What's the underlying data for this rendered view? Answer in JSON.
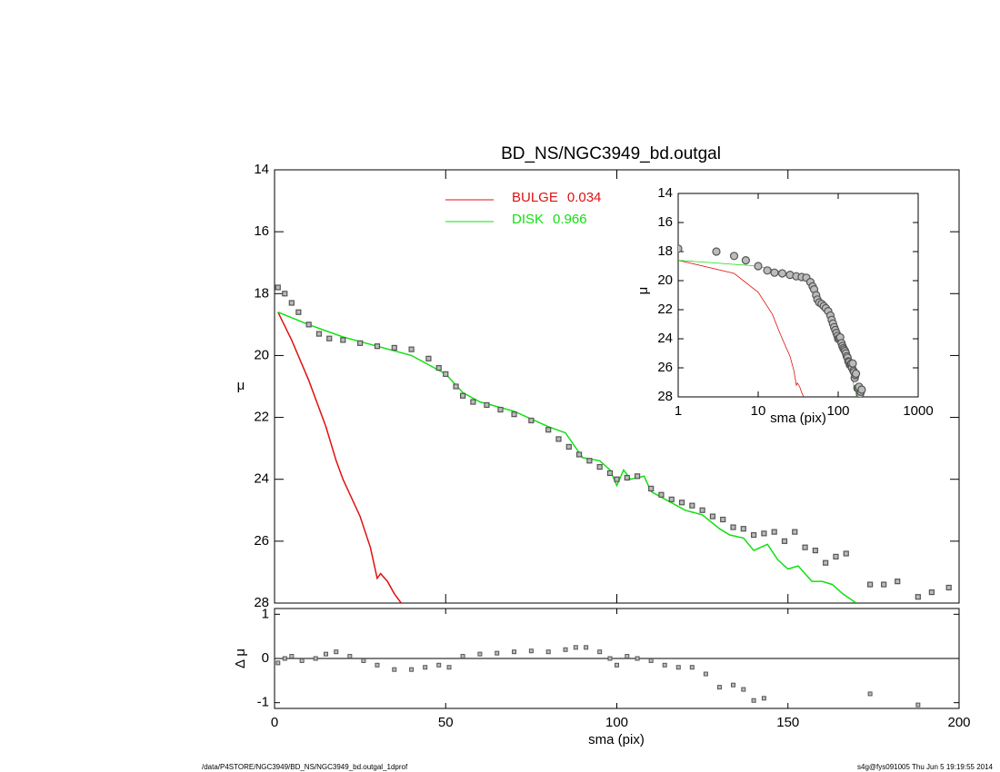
{
  "chart_data": [
    {
      "type": "line",
      "title": "BD_NS/NGC3949_bd.outgal",
      "ylabel": "μ",
      "xlim": [
        0,
        200
      ],
      "xticks": [
        0,
        50,
        100,
        150,
        200
      ],
      "ylim": [
        28,
        14
      ],
      "yticks": [
        14,
        16,
        18,
        20,
        22,
        24,
        26,
        28
      ],
      "points": {
        "color": "#555555",
        "x": [
          1,
          3,
          5,
          7,
          10,
          13,
          16,
          20,
          25,
          30,
          35,
          40,
          45,
          48,
          50,
          53,
          55,
          58,
          62,
          66,
          70,
          75,
          80,
          83,
          86,
          89,
          92,
          95,
          98,
          100,
          103,
          106,
          110,
          113,
          116,
          119,
          122,
          125,
          128,
          131,
          134,
          137,
          140,
          143,
          146,
          149,
          152,
          155,
          158,
          161,
          164,
          167,
          174,
          178,
          182,
          188,
          192,
          197
        ],
        "values": [
          17.8,
          18.0,
          18.3,
          18.6,
          19.0,
          19.3,
          19.45,
          19.5,
          19.6,
          19.7,
          19.75,
          19.8,
          20.1,
          20.4,
          20.6,
          21.0,
          21.3,
          21.5,
          21.6,
          21.75,
          21.9,
          22.1,
          22.4,
          22.7,
          22.95,
          23.2,
          23.4,
          23.6,
          23.8,
          24.0,
          23.95,
          23.9,
          24.3,
          24.5,
          24.65,
          24.75,
          24.85,
          25.0,
          25.2,
          25.3,
          25.55,
          25.6,
          25.8,
          25.75,
          25.7,
          26.0,
          25.7,
          26.2,
          26.3,
          26.7,
          26.5,
          26.4,
          27.4,
          27.4,
          27.3,
          27.8,
          27.65,
          27.5
        ]
      },
      "series": [
        {
          "name": "BULGE",
          "fraction": 0.034,
          "color": "#e01010",
          "x": [
            1,
            5,
            10,
            15,
            18,
            20,
            25,
            28,
            30,
            31,
            33,
            35,
            37
          ],
          "values": [
            18.6,
            19.5,
            20.8,
            22.3,
            23.4,
            24.0,
            25.2,
            26.2,
            27.2,
            27.05,
            27.3,
            27.7,
            28.0
          ]
        },
        {
          "name": "DISK",
          "fraction": 0.966,
          "color": "#10e010",
          "x": [
            1,
            10,
            20,
            30,
            40,
            50,
            55,
            60,
            70,
            80,
            85,
            90,
            95,
            98,
            100,
            102,
            104,
            108,
            110,
            120,
            125,
            130,
            133,
            137,
            140,
            144,
            147,
            150,
            153,
            157,
            160,
            163,
            166,
            170
          ],
          "values": [
            18.6,
            19.0,
            19.4,
            19.7,
            20.0,
            20.6,
            21.2,
            21.5,
            21.8,
            22.3,
            22.5,
            23.3,
            23.4,
            23.7,
            24.2,
            23.7,
            24.0,
            23.9,
            24.4,
            25.0,
            25.15,
            25.6,
            25.8,
            25.9,
            26.3,
            26.1,
            26.6,
            26.9,
            26.8,
            27.3,
            27.3,
            27.4,
            27.7,
            28.0
          ]
        }
      ]
    },
    {
      "type": "line",
      "log_x": true,
      "xlabel": "sma (pix)",
      "ylabel": "μ",
      "xlim": [
        1,
        1000
      ],
      "xticks": [
        1,
        10,
        100,
        1000
      ],
      "ylim": [
        28,
        14
      ],
      "yticks": [
        14,
        16,
        18,
        20,
        22,
        24,
        26,
        28
      ]
    },
    {
      "type": "scatter",
      "xlabel": "sma (pix)",
      "ylabel": "Δ μ",
      "xlim": [
        0,
        200
      ],
      "xticks": [
        0,
        50,
        100,
        150,
        200
      ],
      "ylim": [
        -1.13,
        1.13
      ],
      "yticks": [
        -1,
        0,
        1
      ],
      "reference_line": 0,
      "color": "#555555",
      "x": [
        1,
        3,
        5,
        8,
        12,
        15,
        18,
        22,
        26,
        30,
        35,
        40,
        44,
        48,
        51,
        55,
        60,
        65,
        70,
        75,
        80,
        85,
        88,
        91,
        95,
        98,
        100,
        103,
        106,
        110,
        114,
        118,
        122,
        126,
        130,
        134,
        137,
        140,
        143,
        174,
        188
      ],
      "values": [
        -0.1,
        0.0,
        0.05,
        -0.05,
        0.0,
        0.1,
        0.15,
        0.05,
        -0.05,
        -0.15,
        -0.25,
        -0.25,
        -0.2,
        -0.15,
        -0.2,
        0.05,
        0.1,
        0.12,
        0.15,
        0.17,
        0.15,
        0.2,
        0.25,
        0.25,
        0.15,
        0.0,
        -0.15,
        0.05,
        0.0,
        -0.05,
        -0.15,
        -0.2,
        -0.2,
        -0.35,
        -0.65,
        -0.6,
        -0.7,
        -0.95,
        -0.9,
        -0.8,
        -1.05
      ]
    }
  ],
  "footer": {
    "left": "/data/P4STORE/NGC3949/BD_NS/NGC3949_bd.outgal_1dprof",
    "right": "s4g@fys091005  Thu Jun  5 19:19:55 2014"
  }
}
